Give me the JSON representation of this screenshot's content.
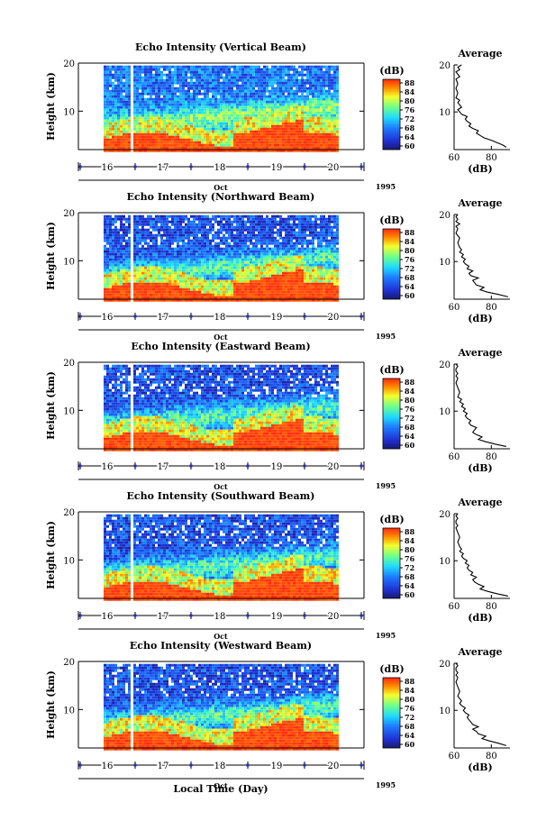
{
  "chart_data": [
    {
      "type": "heatmap",
      "title": "Echo Intensity (Vertical Beam)",
      "ylabel": "Height (km)",
      "ylim": [
        2,
        20
      ],
      "yticks": [
        10,
        20
      ],
      "x_day_ticks": [
        "16",
        "17",
        "18",
        "19",
        "20"
      ],
      "month_label": "Oct",
      "year_label": "1995",
      "colorbar": {
        "unit": "(dB)",
        "ticks": [
          "88",
          "84",
          "80",
          "76",
          "72",
          "68",
          "64",
          "60"
        ],
        "min": 60,
        "max": 88
      },
      "profile": {
        "title": "Average",
        "xlabel": "(dB)",
        "xticks": [
          60,
          80
        ],
        "xlim": [
          60,
          90
        ],
        "height": [
          2.5,
          3,
          3.5,
          4,
          4.5,
          5,
          5.5,
          6,
          6.5,
          7,
          7.5,
          8,
          8.5,
          9,
          9.5,
          10,
          10.5,
          11,
          11.5,
          12,
          12.5,
          13,
          14,
          15,
          16,
          17,
          17.5,
          18,
          18.5,
          19,
          19.5,
          20
        ],
        "db": [
          88,
          86,
          83,
          80,
          76,
          74,
          72,
          73,
          70,
          68,
          69,
          67,
          66,
          67,
          64,
          63,
          62,
          64,
          63,
          62,
          63,
          61,
          62,
          61,
          62,
          61,
          63,
          62,
          61,
          63,
          62,
          64
        ]
      }
    },
    {
      "type": "heatmap",
      "title": "Echo Intensity (Northward Beam)",
      "ylabel": "Height (km)",
      "ylim": [
        2,
        20
      ],
      "yticks": [
        10,
        20
      ],
      "x_day_ticks": [
        "16",
        "17",
        "18",
        "19",
        "20"
      ],
      "month_label": "Oct",
      "year_label": "1995",
      "colorbar": {
        "unit": "(dB)",
        "ticks": [
          "88",
          "84",
          "80",
          "76",
          "72",
          "68",
          "64",
          "60"
        ],
        "min": 60,
        "max": 88
      },
      "profile": {
        "title": "Average",
        "xlabel": "(dB)",
        "xticks": [
          60,
          80
        ],
        "xlim": [
          60,
          90
        ],
        "height": [
          2.5,
          3,
          3.5,
          4,
          4.5,
          5,
          5.5,
          6,
          6.5,
          7,
          7.5,
          8,
          8.5,
          9,
          9.5,
          10,
          10.5,
          11,
          11.5,
          12,
          12.5,
          13,
          14,
          15,
          16,
          17,
          17.5,
          18,
          18.5,
          19,
          19.5,
          20
        ],
        "db": [
          89,
          84,
          78,
          74,
          76,
          72,
          71,
          70,
          73,
          69,
          68,
          70,
          67,
          68,
          66,
          65,
          66,
          64,
          65,
          63,
          64,
          63,
          62,
          63,
          61,
          62,
          61,
          63,
          61,
          62,
          61,
          62
        ]
      }
    },
    {
      "type": "heatmap",
      "title": "Echo Intensity (Eastward Beam)",
      "ylabel": "Height (km)",
      "ylim": [
        2,
        20
      ],
      "yticks": [
        10,
        20
      ],
      "x_day_ticks": [
        "16",
        "17",
        "18",
        "19",
        "20"
      ],
      "month_label": "Oct",
      "year_label": "1995",
      "colorbar": {
        "unit": "(dB)",
        "ticks": [
          "88",
          "84",
          "80",
          "76",
          "72",
          "68",
          "64",
          "60"
        ],
        "min": 60,
        "max": 88
      },
      "profile": {
        "title": "Average",
        "xlabel": "(dB)",
        "xticks": [
          60,
          80
        ],
        "xlim": [
          60,
          90
        ],
        "height": [
          2.5,
          3,
          3.5,
          4,
          4.5,
          5,
          5.5,
          6,
          6.5,
          7,
          7.5,
          8,
          8.5,
          9,
          9.5,
          10,
          10.5,
          11,
          11.5,
          12,
          12.5,
          13,
          14,
          15,
          16,
          17,
          17.5,
          18,
          18.5,
          19,
          19.5,
          20
        ],
        "db": [
          88,
          82,
          77,
          73,
          75,
          72,
          70,
          71,
          72,
          69,
          68,
          69,
          67,
          66,
          67,
          65,
          66,
          64,
          65,
          63,
          64,
          62,
          63,
          62,
          61,
          62,
          61,
          62,
          61,
          61,
          62,
          61
        ]
      }
    },
    {
      "type": "heatmap",
      "title": "Echo Intensity (Southward Beam)",
      "ylabel": "Height (km)",
      "ylim": [
        2,
        20
      ],
      "yticks": [
        10,
        20
      ],
      "x_day_ticks": [
        "16",
        "17",
        "18",
        "19",
        "20"
      ],
      "month_label": "Oct",
      "year_label": "1995",
      "colorbar": {
        "unit": "(dB)",
        "ticks": [
          "88",
          "84",
          "80",
          "76",
          "72",
          "68",
          "64",
          "60"
        ],
        "min": 60,
        "max": 88
      },
      "profile": {
        "title": "Average",
        "xlabel": "(dB)",
        "xticks": [
          60,
          80
        ],
        "xlim": [
          60,
          90
        ],
        "height": [
          2.5,
          3,
          3.5,
          4,
          4.5,
          5,
          5.5,
          6,
          6.5,
          7,
          7.5,
          8,
          8.5,
          9,
          9.5,
          10,
          10.5,
          11,
          11.5,
          12,
          12.5,
          13,
          14,
          15,
          16,
          17,
          17.5,
          18,
          18.5,
          19,
          19.5,
          20
        ],
        "db": [
          89,
          83,
          78,
          74,
          76,
          73,
          71,
          70,
          72,
          69,
          70,
          68,
          67,
          68,
          66,
          67,
          65,
          64,
          65,
          63,
          64,
          63,
          62,
          63,
          62,
          61,
          62,
          61,
          61,
          62,
          61,
          62
        ]
      }
    },
    {
      "type": "heatmap",
      "title": "Echo Intensity (Westward Beam)",
      "ylabel": "Height (km)",
      "ylim": [
        2,
        20
      ],
      "yticks": [
        10,
        20
      ],
      "x_day_ticks": [
        "16",
        "17",
        "18",
        "19",
        "20"
      ],
      "month_label": "Oct",
      "year_label": "1995",
      "colorbar": {
        "unit": "(dB)",
        "ticks": [
          "88",
          "84",
          "80",
          "76",
          "72",
          "68",
          "64",
          "60"
        ],
        "min": 60,
        "max": 88
      },
      "profile": {
        "title": "Average",
        "xlabel": "(dB)",
        "xticks": [
          60,
          80
        ],
        "xlim": [
          60,
          90
        ],
        "height": [
          2.5,
          3,
          3.5,
          4,
          4.5,
          5,
          5.5,
          6,
          6.5,
          7,
          7.5,
          8,
          8.5,
          9,
          9.5,
          10,
          10.5,
          11,
          11.5,
          12,
          12.5,
          13,
          14,
          15,
          16,
          17,
          17.5,
          18,
          18.5,
          19,
          19.5,
          20
        ],
        "db": [
          88,
          84,
          79,
          75,
          77,
          73,
          72,
          70,
          73,
          70,
          69,
          68,
          67,
          68,
          66,
          65,
          66,
          64,
          63,
          64,
          63,
          62,
          63,
          62,
          61,
          62,
          61,
          62,
          61,
          61,
          62,
          61
        ]
      }
    }
  ],
  "figure_xlabel": "Local Time (Day)"
}
